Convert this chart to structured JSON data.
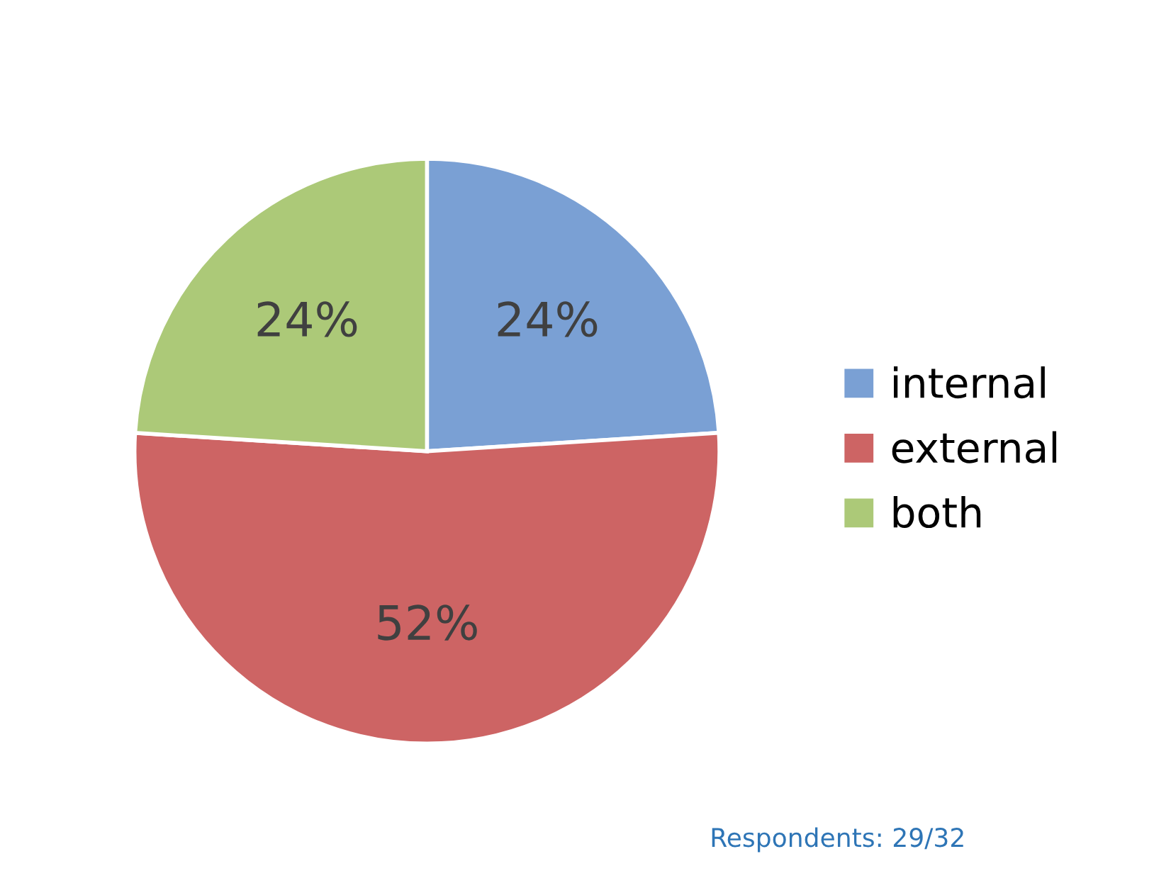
{
  "chart_data": {
    "type": "pie",
    "categories": [
      "internal",
      "external",
      "both"
    ],
    "values": [
      24,
      52,
      24
    ],
    "colors": [
      "#7aa0d4",
      "#cd6464",
      "#acc978"
    ],
    "value_labels": [
      "24%",
      "52%",
      "24%"
    ],
    "legend": "right",
    "annotations": [
      "Respondents: 29/32"
    ]
  }
}
